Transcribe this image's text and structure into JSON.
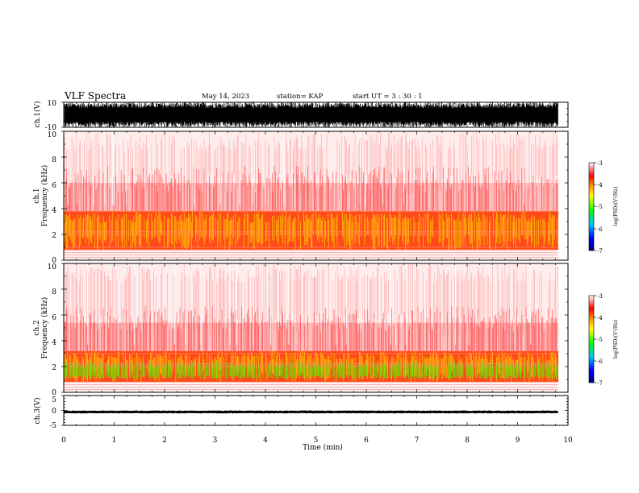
{
  "header": {
    "title": "VLF Spectra",
    "date": "May 14, 2023",
    "station": "station= KAP",
    "start": "start  UT  =   3  : 30 : 1"
  },
  "colors": {
    "spectrogram_scale": [
      "#000080",
      "#0000ff",
      "#00c8ff",
      "#00ff00",
      "#ffff00",
      "#ff8000",
      "#ff0000",
      "#ffffff"
    ],
    "waveform": "#000000"
  },
  "chart_data": [
    {
      "type": "line",
      "name": "ch1-waveform",
      "ylabel": "ch.1(V)",
      "ylim": [
        -10,
        10
      ],
      "yticks": [
        "10",
        "-10"
      ],
      "xlim": [
        0,
        10
      ],
      "data_extent_min": 9.8,
      "amplitude_range_v": [
        -10,
        10
      ]
    },
    {
      "type": "heatmap",
      "name": "ch1-spectrogram",
      "ylabel_top": "ch.1",
      "ylabel": "Frequency  (kHz)",
      "ylim": [
        0,
        10
      ],
      "yticks": [
        "0",
        "2",
        "4",
        "6",
        "8",
        "10"
      ],
      "xlim": [
        0,
        10
      ],
      "data_extent_min": 9.8,
      "strong_band_khz": [
        0.8,
        3.8
      ],
      "line_frequencies_khz": [
        0.2,
        0.4,
        0.6,
        0.8,
        1.0,
        2.0,
        2.2,
        3.8
      ],
      "colorbar": {
        "label": "log(PSD)(V²/Hz)",
        "range": [
          -7,
          -3
        ],
        "ticks": [
          "-3",
          "-4",
          "-5",
          "-6",
          "-7"
        ]
      }
    },
    {
      "type": "heatmap",
      "name": "ch2-spectrogram",
      "ylabel_top": "ch.2",
      "ylabel": "Frequency  (kHz)",
      "ylim": [
        0,
        10
      ],
      "yticks": [
        "0",
        "2",
        "4",
        "6",
        "8",
        "10"
      ],
      "xlim": [
        0,
        10
      ],
      "data_extent_min": 9.8,
      "strong_band_khz": [
        0.8,
        3.2
      ],
      "green_band_khz": [
        1.0,
        2.4
      ],
      "line_frequencies_khz": [
        0.2,
        0.4,
        0.6,
        0.8,
        2.0,
        2.2,
        3.0
      ],
      "colorbar": {
        "label": "log(PSD)(V²/Hz)",
        "range": [
          -7,
          -3
        ],
        "ticks": [
          "-3",
          "-4",
          "-5",
          "-6",
          "-7"
        ]
      }
    },
    {
      "type": "line",
      "name": "ch3-waveform",
      "ylabel": "ch.3(V)",
      "ylim": [
        -5,
        5
      ],
      "yticks": [
        "5",
        "0",
        "-5"
      ],
      "xlim": [
        0,
        10
      ],
      "data_extent_min": 9.8,
      "amplitude_range_v": [
        -1,
        0
      ],
      "xlabel": "Time  (min)",
      "xticks": [
        "0",
        "1",
        "2",
        "3",
        "4",
        "5",
        "6",
        "7",
        "8",
        "9",
        "10"
      ]
    }
  ]
}
